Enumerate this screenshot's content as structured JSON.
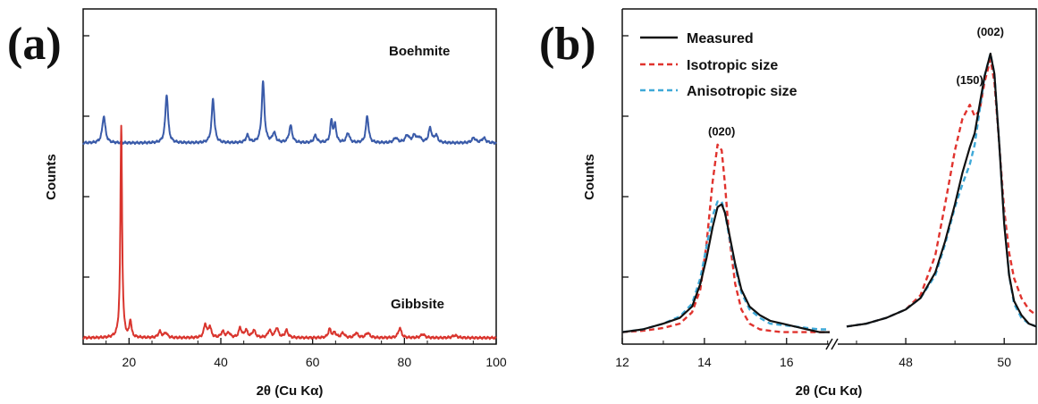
{
  "chart_data": [
    {
      "panel_label": "(a)",
      "type": "line",
      "xlabel": "2θ (Cu Kα)",
      "ylabel": "Counts",
      "xlim": [
        10,
        100
      ],
      "xticks": [
        20,
        40,
        60,
        80,
        100
      ],
      "grid": false,
      "series": [
        {
          "name": "Boehmite",
          "color": "#3a5ba9",
          "baseline": 0.8,
          "peaks": [
            [
              14.5,
              0.11,
              0.4
            ],
            [
              28.2,
              0.2,
              0.35
            ],
            [
              38.3,
              0.18,
              0.35
            ],
            [
              45.8,
              0.03,
              0.4
            ],
            [
              49.2,
              0.25,
              0.35
            ],
            [
              51.6,
              0.04,
              0.4
            ],
            [
              55.2,
              0.07,
              0.4
            ],
            [
              60.6,
              0.03,
              0.4
            ],
            [
              64.1,
              0.09,
              0.3
            ],
            [
              64.9,
              0.07,
              0.3
            ],
            [
              67.7,
              0.04,
              0.4
            ],
            [
              71.9,
              0.11,
              0.35
            ],
            [
              78.1,
              0.02,
              0.5
            ],
            [
              80.6,
              0.03,
              0.5
            ],
            [
              82.2,
              0.03,
              0.5
            ],
            [
              83.3,
              0.02,
              0.4
            ],
            [
              85.6,
              0.06,
              0.4
            ],
            [
              86.9,
              0.03,
              0.4
            ],
            [
              95.1,
              0.02,
              0.5
            ],
            [
              97.3,
              0.02,
              0.5
            ]
          ]
        },
        {
          "name": "Gibbsite",
          "color": "#d9352e",
          "baseline": 0.0,
          "peaks": [
            [
              18.3,
              0.87,
              0.22
            ],
            [
              20.3,
              0.07,
              0.25
            ],
            [
              26.7,
              0.025,
              0.4
            ],
            [
              28.0,
              0.02,
              0.4
            ],
            [
              36.6,
              0.055,
              0.35
            ],
            [
              37.6,
              0.045,
              0.35
            ],
            [
              40.4,
              0.025,
              0.4
            ],
            [
              41.7,
              0.02,
              0.4
            ],
            [
              44.2,
              0.04,
              0.35
            ],
            [
              45.5,
              0.03,
              0.4
            ],
            [
              47.2,
              0.03,
              0.4
            ],
            [
              50.6,
              0.03,
              0.4
            ],
            [
              52.2,
              0.04,
              0.4
            ],
            [
              54.3,
              0.03,
              0.4
            ],
            [
              63.7,
              0.035,
              0.35
            ],
            [
              64.8,
              0.02,
              0.4
            ],
            [
              66.6,
              0.02,
              0.4
            ],
            [
              69.5,
              0.02,
              0.4
            ],
            [
              72.0,
              0.02,
              0.5
            ],
            [
              79.0,
              0.04,
              0.4
            ],
            [
              84.0,
              0.015,
              0.5
            ],
            [
              91.0,
              0.01,
              0.6
            ]
          ]
        }
      ]
    },
    {
      "panel_label": "(b)",
      "type": "line",
      "xlabel": "2θ (Cu Kα)",
      "ylabel": "Counts",
      "broken_x_axis": true,
      "segments": [
        {
          "xlim": [
            12,
            17.05
          ],
          "xticks": [
            12,
            14,
            16
          ]
        },
        {
          "xlim": [
            46.6,
            50.65
          ],
          "xticks": [
            48,
            50
          ]
        }
      ],
      "legend_position": "top-left",
      "series": [
        {
          "name": "Measured",
          "color": "#111111",
          "dash": "solid",
          "x": [
            12.0,
            12.5,
            13.0,
            13.4,
            13.7,
            13.9,
            14.05,
            14.2,
            14.32,
            14.42,
            14.5,
            14.6,
            14.75,
            14.9,
            15.1,
            15.35,
            15.6,
            15.9,
            16.2,
            16.5,
            16.8,
            17.05,
            46.8,
            47.2,
            47.6,
            48.0,
            48.3,
            48.6,
            48.8,
            49.0,
            49.15,
            49.3,
            49.4,
            49.5,
            49.6,
            49.72,
            49.8,
            49.9,
            50.0,
            50.1,
            50.2,
            50.35,
            50.5,
            50.65
          ],
          "y": [
            0.02,
            0.03,
            0.05,
            0.07,
            0.11,
            0.19,
            0.28,
            0.39,
            0.46,
            0.47,
            0.44,
            0.37,
            0.26,
            0.17,
            0.11,
            0.08,
            0.06,
            0.05,
            0.04,
            0.03,
            0.02,
            0.02,
            0.04,
            0.05,
            0.07,
            0.1,
            0.14,
            0.23,
            0.34,
            0.47,
            0.58,
            0.67,
            0.72,
            0.82,
            0.92,
            1.0,
            0.93,
            0.68,
            0.4,
            0.22,
            0.13,
            0.08,
            0.05,
            0.04
          ]
        },
        {
          "name": "Isotropic size",
          "color": "#e0332e",
          "dash": "dashed",
          "x": [
            12.0,
            12.5,
            13.0,
            13.4,
            13.7,
            13.9,
            14.05,
            14.2,
            14.32,
            14.42,
            14.5,
            14.6,
            14.75,
            14.9,
            15.1,
            15.35,
            15.6,
            15.9,
            16.2,
            16.5,
            16.8,
            17.05,
            46.8,
            47.2,
            47.6,
            48.0,
            48.3,
            48.6,
            48.8,
            49.0,
            49.15,
            49.3,
            49.4,
            49.5,
            49.6,
            49.72,
            49.8,
            49.9,
            50.0,
            50.1,
            50.2,
            50.35,
            50.5,
            50.65
          ],
          "y": [
            0.02,
            0.025,
            0.035,
            0.05,
            0.09,
            0.17,
            0.33,
            0.55,
            0.68,
            0.66,
            0.54,
            0.36,
            0.19,
            0.1,
            0.05,
            0.03,
            0.025,
            0.02,
            0.02,
            0.02,
            0.02,
            0.02,
            0.04,
            0.05,
            0.07,
            0.1,
            0.15,
            0.29,
            0.47,
            0.66,
            0.77,
            0.82,
            0.78,
            0.8,
            0.9,
            0.98,
            0.9,
            0.68,
            0.45,
            0.3,
            0.21,
            0.14,
            0.1,
            0.08
          ]
        },
        {
          "name": "Anisotropic size",
          "color": "#3fa9d8",
          "dash": "dashed",
          "x": [
            12.0,
            12.5,
            13.0,
            13.4,
            13.7,
            13.9,
            14.05,
            14.2,
            14.32,
            14.42,
            14.5,
            14.6,
            14.75,
            14.9,
            15.1,
            15.35,
            15.6,
            15.9,
            16.2,
            16.5,
            16.8,
            17.05,
            46.8,
            47.2,
            47.6,
            48.0,
            48.3,
            48.6,
            48.8,
            49.0,
            49.15,
            49.3,
            49.4,
            49.5,
            49.6,
            49.72,
            49.8,
            49.9,
            50.0,
            50.1,
            50.2,
            50.35,
            50.5,
            50.65
          ],
          "y": [
            0.02,
            0.03,
            0.05,
            0.075,
            0.12,
            0.21,
            0.32,
            0.43,
            0.48,
            0.48,
            0.44,
            0.36,
            0.25,
            0.16,
            0.1,
            0.07,
            0.05,
            0.045,
            0.04,
            0.035,
            0.03,
            0.03,
            0.04,
            0.05,
            0.07,
            0.1,
            0.14,
            0.22,
            0.33,
            0.46,
            0.54,
            0.61,
            0.68,
            0.8,
            0.92,
            1.0,
            0.93,
            0.68,
            0.41,
            0.22,
            0.12,
            0.07,
            0.05,
            0.04
          ]
        }
      ],
      "peak_labels": [
        {
          "text": "(020)",
          "x": 14.42,
          "y": 0.7
        },
        {
          "text": "(150)",
          "x": 49.3,
          "y": 0.88
        },
        {
          "text": "(002)",
          "x": 49.72,
          "y": 1.05
        }
      ]
    }
  ]
}
